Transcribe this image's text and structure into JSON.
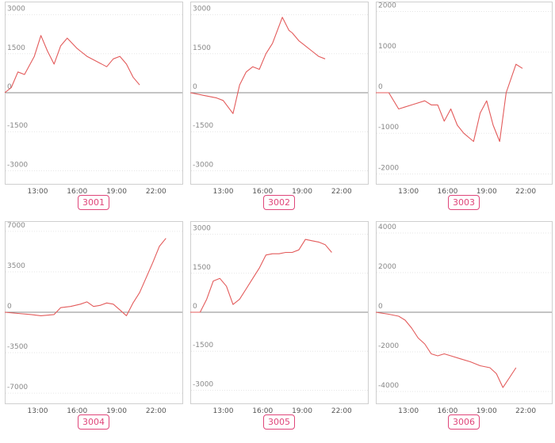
{
  "colors": {
    "line": "#e35b5b",
    "frame": "#cfcfcf",
    "grid": "#e6e6e6",
    "zero_line": "#8a8a8a",
    "tick_label": "#888888",
    "badge": "#e0467a"
  },
  "chart_data": [
    {
      "type": "line",
      "label": "3001",
      "x_ticks": [
        "13:00",
        "16:00",
        "19:00",
        "22:00"
      ],
      "x_tick_hours": [
        13,
        16,
        19,
        22
      ],
      "xlim": [
        10.5,
        24
      ],
      "y_ticks": [
        "3000",
        "1500",
        "0",
        "-1500",
        "-3000"
      ],
      "y_tick_values": [
        3000,
        1500,
        0,
        -1500,
        -3000
      ],
      "ylim": [
        -3200,
        3200
      ],
      "x": [
        10.5,
        11.0,
        11.5,
        12.0,
        12.75,
        13.25,
        13.75,
        14.25,
        14.75,
        15.25,
        16.0,
        16.25,
        16.75,
        17.5,
        18.25,
        18.75,
        19.25,
        19.75,
        20.25,
        20.75
      ],
      "y": [
        0,
        200,
        800,
        700,
        1400,
        2200,
        1600,
        1100,
        1800,
        2100,
        1700,
        1600,
        1400,
        1200,
        1000,
        1300,
        1400,
        1100,
        600,
        300
      ]
    },
    {
      "type": "line",
      "label": "3002",
      "x_ticks": [
        "13:00",
        "16:00",
        "19:00",
        "22:00"
      ],
      "x_tick_hours": [
        13,
        16,
        19,
        22
      ],
      "xlim": [
        10.5,
        24
      ],
      "y_ticks": [
        "3000",
        "1500",
        "0",
        "-1500",
        "-3000"
      ],
      "y_tick_values": [
        3000,
        1500,
        0,
        -1500,
        -3000
      ],
      "ylim": [
        -3200,
        3200
      ],
      "x": [
        10.5,
        11.5,
        12.5,
        13.0,
        13.75,
        14.25,
        14.75,
        15.25,
        15.75,
        16.25,
        16.75,
        17.5,
        18.0,
        18.25,
        18.75,
        19.25,
        19.75,
        20.25,
        20.75
      ],
      "y": [
        0,
        -100,
        -200,
        -300,
        -800,
        300,
        800,
        1000,
        900,
        1500,
        1900,
        2900,
        2400,
        2300,
        2000,
        1800,
        1600,
        1400,
        1300
      ]
    },
    {
      "type": "line",
      "label": "3003",
      "x_ticks": [
        "13:00",
        "16:00",
        "19:00",
        "22:00"
      ],
      "x_tick_hours": [
        13,
        16,
        19,
        22
      ],
      "xlim": [
        10.5,
        24
      ],
      "y_ticks": [
        "2000",
        "1000",
        "0",
        "-1000",
        "-2000"
      ],
      "y_tick_values": [
        2000,
        1000,
        0,
        -1000,
        -2000
      ],
      "ylim": [
        -2050,
        2050
      ],
      "x": [
        10.5,
        11.5,
        12.25,
        13.25,
        14.25,
        14.75,
        15.25,
        15.75,
        16.25,
        16.75,
        17.25,
        18.0,
        18.5,
        19.0,
        19.5,
        20.0,
        20.5,
        21.25,
        21.75
      ],
      "y": [
        0,
        0,
        -400,
        -300,
        -200,
        -300,
        -300,
        -700,
        -400,
        -800,
        -1000,
        -1200,
        -500,
        -200,
        -800,
        -1200,
        0,
        700,
        600
      ]
    },
    {
      "type": "line",
      "label": "3004",
      "x_ticks": [
        "13:00",
        "16:00",
        "19:00",
        "22:00"
      ],
      "x_tick_hours": [
        13,
        16,
        19,
        22
      ],
      "xlim": [
        10.5,
        24
      ],
      "y_ticks": [
        "7000",
        "3500",
        "0",
        "-3500",
        "-7000"
      ],
      "y_tick_values": [
        7000,
        3500,
        0,
        -3500,
        -7000
      ],
      "ylim": [
        -7200,
        7200
      ],
      "x": [
        10.5,
        11.5,
        12.5,
        13.25,
        14.25,
        14.75,
        15.5,
        16.25,
        16.75,
        17.25,
        17.75,
        18.25,
        18.75,
        19.25,
        19.75,
        20.25,
        20.75,
        21.25,
        21.75,
        22.25,
        22.75
      ],
      "y": [
        0,
        -100,
        -200,
        -300,
        -200,
        400,
        500,
        700,
        900,
        500,
        600,
        800,
        700,
        200,
        -300,
        800,
        1700,
        3000,
        4300,
        5700,
        6400
      ]
    },
    {
      "type": "line",
      "label": "3005",
      "x_ticks": [
        "13:00",
        "16:00",
        "19:00",
        "22:00"
      ],
      "x_tick_hours": [
        13,
        16,
        19,
        22
      ],
      "xlim": [
        10.5,
        24
      ],
      "y_ticks": [
        "3000",
        "1500",
        "0",
        "-1500",
        "-3000"
      ],
      "y_tick_values": [
        3000,
        1500,
        0,
        -1500,
        -3000
      ],
      "ylim": [
        -3200,
        3200
      ],
      "x": [
        10.5,
        11.25,
        11.75,
        12.25,
        12.75,
        13.25,
        13.75,
        14.25,
        14.75,
        15.25,
        15.75,
        16.25,
        16.75,
        17.25,
        17.75,
        18.25,
        18.75,
        19.25,
        19.75,
        20.25,
        20.75,
        21.25
      ],
      "y": [
        0,
        0,
        500,
        1200,
        1300,
        1000,
        300,
        500,
        900,
        1300,
        1700,
        2200,
        2250,
        2250,
        2300,
        2300,
        2400,
        2800,
        2750,
        2700,
        2600,
        2300
      ]
    },
    {
      "type": "line",
      "label": "3006",
      "x_ticks": [
        "13:00",
        "16:00",
        "19:00",
        "22:00"
      ],
      "x_tick_hours": [
        13,
        16,
        19,
        22
      ],
      "xlim": [
        10.5,
        24
      ],
      "y_ticks": [
        "4000",
        "2000",
        "0",
        "-2000",
        "-4000"
      ],
      "y_tick_values": [
        4000,
        2000,
        0,
        -2000,
        -4000
      ],
      "ylim": [
        -4200,
        4200
      ],
      "x": [
        10.5,
        11.5,
        12.25,
        12.75,
        13.25,
        13.75,
        14.25,
        14.75,
        15.25,
        15.75,
        16.25,
        17.0,
        17.75,
        18.5,
        19.25,
        19.75,
        20.25,
        20.75,
        21.25
      ],
      "y": [
        0,
        -100,
        -200,
        -400,
        -800,
        -1300,
        -1600,
        -2100,
        -2200,
        -2100,
        -2200,
        -2350,
        -2500,
        -2700,
        -2800,
        -3100,
        -3800,
        -3300,
        -2800
      ]
    }
  ]
}
